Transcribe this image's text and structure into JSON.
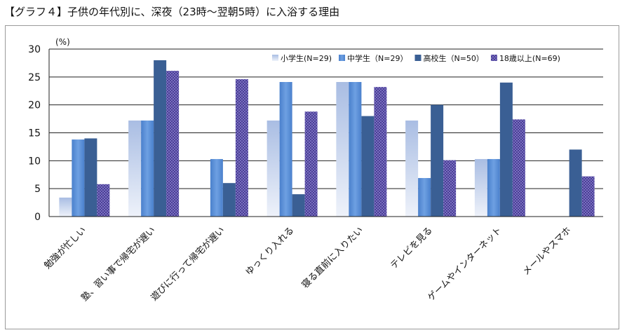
{
  "page_title": "【グラフ４】子供の年代別に、深夜（23時〜翌朝5時）に入浴する理由",
  "chart_data": {
    "type": "bar",
    "ylabel": "(%)",
    "ylim": [
      0,
      30
    ],
    "yticks": [
      0,
      5,
      10,
      15,
      20,
      25,
      30
    ],
    "grid": true,
    "legend_position": "top-right",
    "categories": [
      "勉強が忙しい",
      "塾、習い事で帰宅が遅い",
      "遊びに行って帰宅が遅い",
      "ゆっくり入れる",
      "寝る直前に入りたい",
      "テレビを見る",
      "ゲームやインターネット",
      "メールやスマホ"
    ],
    "series": [
      {
        "name": "小学生(N=29)",
        "values": [
          3.4,
          17.2,
          0,
          17.2,
          24.1,
          17.2,
          10.3,
          0
        ]
      },
      {
        "name": "中学生（N=29）",
        "values": [
          13.8,
          17.2,
          10.3,
          24.1,
          24.1,
          6.9,
          10.3,
          0
        ]
      },
      {
        "name": "高校生（N=50）",
        "values": [
          14.0,
          28.0,
          6.0,
          4.0,
          18.0,
          20.0,
          24.0,
          12.0
        ]
      },
      {
        "name": "18歳以上(N=69)",
        "values": [
          5.8,
          26.1,
          24.6,
          18.8,
          23.2,
          10.1,
          17.4,
          7.2
        ]
      }
    ],
    "colors": [
      "#c9d6ec",
      "#5b8fd6",
      "#3a5f94",
      "#6a5fb0"
    ]
  }
}
